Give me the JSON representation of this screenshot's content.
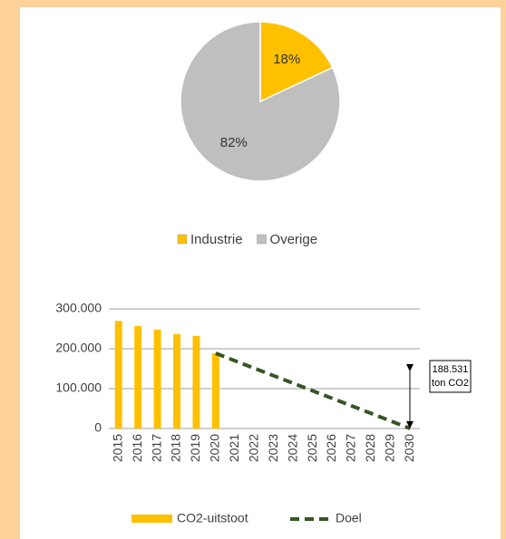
{
  "chart_data": [
    {
      "type": "pie",
      "categories": [
        "Industrie",
        "Overige"
      ],
      "values": [
        18,
        82
      ],
      "value_labels": [
        "18%",
        "82%"
      ],
      "colors": [
        "#ffc000",
        "#bfbfbf"
      ],
      "legend": "bottom"
    },
    {
      "type": "bar_line",
      "categories": [
        "2015",
        "2016",
        "2017",
        "2018",
        "2019",
        "2020",
        "2021",
        "2022",
        "2023",
        "2024",
        "2025",
        "2026",
        "2027",
        "2028",
        "2029",
        "2030"
      ],
      "series": [
        {
          "name": "CO2-uitstoot",
          "type": "bar",
          "color": "#ffc000",
          "values": [
            270000,
            257000,
            248000,
            237000,
            232000,
            188531,
            null,
            null,
            null,
            null,
            null,
            null,
            null,
            null,
            null,
            null
          ]
        },
        {
          "name": "Doel",
          "type": "line",
          "color": "#375623",
          "dashed": true,
          "values": [
            null,
            null,
            null,
            null,
            null,
            188531,
            169678,
            150825,
            131972,
            113119,
            94266,
            75412,
            56559,
            37706,
            18853,
            0
          ]
        }
      ],
      "ylim": [
        0,
        300000
      ],
      "yticks": [
        0,
        {
          "value": 100000,
          "label": "100.000"
        },
        {
          "value": 200000,
          "label": "200.000"
        },
        {
          "value": 300000,
          "label": "300.000"
        }
      ],
      "grid": true,
      "annotation": [
        "188.531",
        "ton CO2"
      ],
      "legend": "bottom"
    }
  ]
}
